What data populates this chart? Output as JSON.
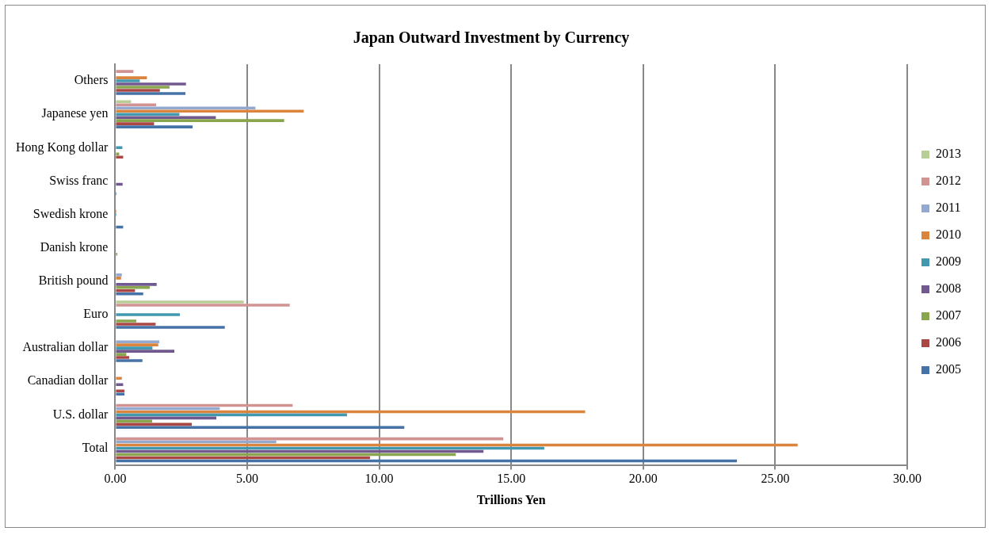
{
  "chart_data": {
    "type": "bar",
    "orientation": "horizontal",
    "title": "Japan Outward Investment by Currency",
    "xlabel": "Trillions Yen",
    "categories": [
      "Others",
      "Japanese yen",
      "Hong Kong dollar",
      "Swiss franc",
      "Swedish krone",
      "Danish krone",
      "British pound",
      "Euro",
      "Australian dollar",
      "Canadian dollar",
      "U.S. dollar",
      "Total"
    ],
    "series": [
      {
        "name": "2013",
        "color": "#b9cd96",
        "values": [
          null,
          0.6,
          null,
          null,
          null,
          null,
          null,
          4.87,
          null,
          null,
          null,
          null
        ]
      },
      {
        "name": "2012",
        "color": "#d19392",
        "values": [
          0.69,
          1.55,
          null,
          null,
          null,
          null,
          null,
          6.61,
          null,
          null,
          6.72,
          14.7
        ]
      },
      {
        "name": "2011",
        "color": "#93a9cf",
        "values": [
          null,
          5.31,
          null,
          null,
          null,
          null,
          0.25,
          null,
          1.67,
          null,
          3.96,
          6.1
        ]
      },
      {
        "name": "2010",
        "color": "#db843d",
        "values": [
          1.2,
          7.14,
          null,
          null,
          0.05,
          null,
          0.22,
          null,
          1.63,
          0.25,
          17.8,
          25.85
        ]
      },
      {
        "name": "2009",
        "color": "#4198af",
        "values": [
          0.93,
          2.43,
          0.27,
          null,
          0.05,
          null,
          null,
          2.45,
          1.41,
          null,
          8.78,
          16.25
        ]
      },
      {
        "name": "2008",
        "color": "#71588f",
        "values": [
          2.68,
          3.81,
          null,
          0.28,
          null,
          0.03,
          1.57,
          null,
          2.24,
          0.3,
          3.83,
          13.95
        ]
      },
      {
        "name": "2007",
        "color": "#89a54e",
        "values": [
          2.06,
          6.4,
          0.15,
          null,
          null,
          0.08,
          1.31,
          0.8,
          0.42,
          null,
          1.4,
          12.9
        ]
      },
      {
        "name": "2006",
        "color": "#aa4643",
        "values": [
          1.69,
          1.47,
          0.3,
          null,
          null,
          0.03,
          0.75,
          1.53,
          0.53,
          0.35,
          2.9,
          9.65
        ]
      },
      {
        "name": "2005",
        "color": "#4572a7",
        "values": [
          2.66,
          2.93,
          null,
          0.05,
          0.3,
          0.03,
          1.06,
          4.15,
          1.03,
          0.35,
          10.95,
          23.55
        ]
      }
    ],
    "xlim": [
      0,
      30
    ],
    "xticks": [
      {
        "value": 0,
        "label": "0.00"
      },
      {
        "value": 5,
        "label": "5.00"
      },
      {
        "value": 10,
        "label": "10.00"
      },
      {
        "value": 15,
        "label": "15.00"
      },
      {
        "value": 20,
        "label": "20.00"
      },
      {
        "value": 25,
        "label": "25.00"
      },
      {
        "value": 30,
        "label": "30.00"
      }
    ],
    "grid": "x",
    "legend": "right"
  }
}
